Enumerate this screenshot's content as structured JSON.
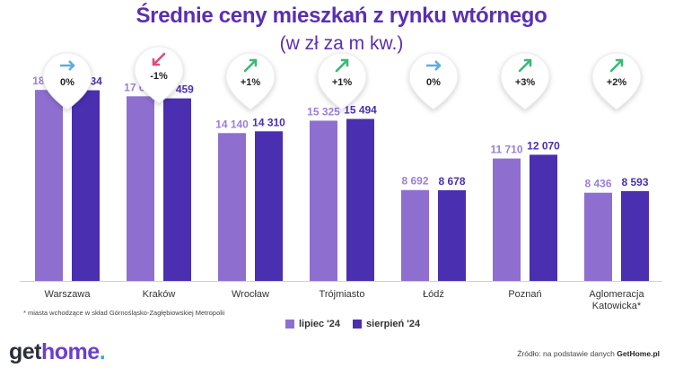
{
  "header": {
    "title": "Średnie ceny mieszkań z rynku wtórnego",
    "subtitle": "(w zł za m kw.)"
  },
  "colors": {
    "series1": "#8e6fd0",
    "series2": "#4a2fb0",
    "value_text1": "#9a80d6",
    "value_text2": "#4a2fb0",
    "arrow_neutral": "#5aaee0",
    "arrow_down": "#e24a7a",
    "arrow_up": "#3cb878"
  },
  "chart_data": {
    "type": "bar",
    "categories": [
      "Warszawa",
      "Kraków",
      "Wrocław",
      "Trójmiasto",
      "Łódź",
      "Poznań",
      "Aglomeracja Katowicka*"
    ],
    "category_lines": [
      [
        "Warszawa"
      ],
      [
        "Kraków"
      ],
      [
        "Wrocław"
      ],
      [
        "Trójmiasto"
      ],
      [
        "Łódź"
      ],
      [
        "Poznań"
      ],
      [
        "Aglomeracja",
        "Katowicka*"
      ]
    ],
    "series": [
      {
        "name": "lipiec '24",
        "values": [
          18270,
          17657,
          14140,
          15325,
          8692,
          11710,
          8436
        ],
        "labels": [
          "18 270",
          "17 657",
          "14 140",
          "15 325",
          "8 692",
          "11 710",
          "8 436"
        ]
      },
      {
        "name": "sierpień '24",
        "values": [
          18234,
          17459,
          14310,
          15494,
          8678,
          12070,
          8593
        ],
        "labels": [
          "18 234",
          "17 459",
          "14 310",
          "15 494",
          "8 678",
          "12 070",
          "8 593"
        ]
      }
    ],
    "changes": [
      {
        "label": "0%",
        "arrow": "right"
      },
      {
        "label": "-1%",
        "arrow": "down-left"
      },
      {
        "label": "+1%",
        "arrow": "up-right"
      },
      {
        "label": "+1%",
        "arrow": "up-right"
      },
      {
        "label": "0%",
        "arrow": "right"
      },
      {
        "label": "+3%",
        "arrow": "up-right"
      },
      {
        "label": "+2%",
        "arrow": "up-right"
      }
    ],
    "ylim": [
      0,
      20000
    ],
    "grid": false,
    "legend_position": "bottom-center"
  },
  "footer": {
    "footnote": "* miasta wchodzące w skład Górnośląsko-Zagłębiowskiej Metropolii",
    "brand_get": "get",
    "brand_home": "home",
    "brand_dot": ".",
    "source_prefix": "Źródło: na podstawie danych",
    "source_name": "GetHome.pl"
  }
}
